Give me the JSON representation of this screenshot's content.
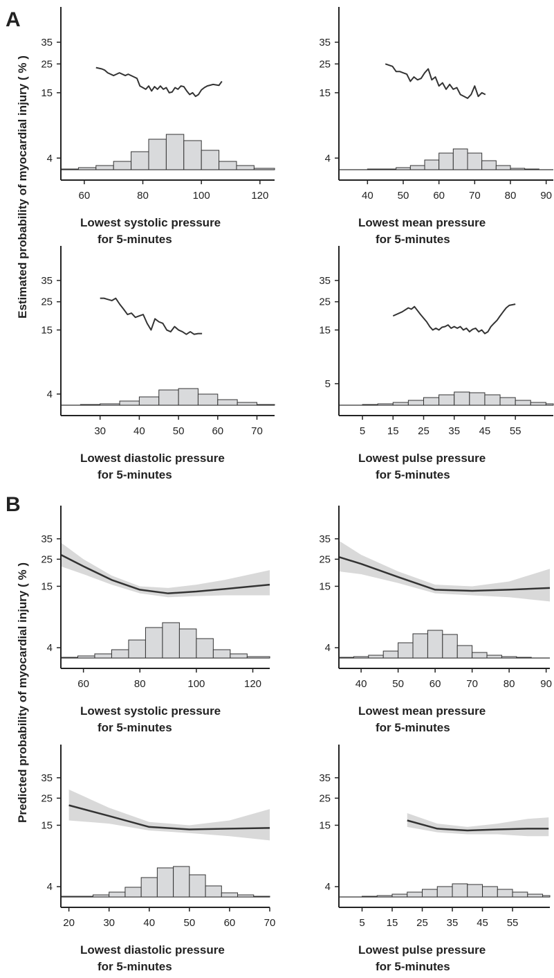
{
  "sections": [
    {
      "label": "A",
      "ylabel": "Estimated probability of myocardial injury ( % )"
    },
    {
      "label": "B",
      "ylabel": "Predicted probability of myocardial injury ( % )"
    }
  ],
  "chart_data": [
    {
      "type": "line",
      "xlabel": [
        "Lowest systolic pressure",
        "for 5-minutes"
      ],
      "yscale": "logit",
      "ylim": [
        2.5,
        54
      ],
      "yticks": [
        4,
        15,
        25,
        35
      ],
      "xlim": [
        52,
        125
      ],
      "xticks": [
        60,
        80,
        100,
        120
      ],
      "color": "#333333",
      "x": [
        64,
        66,
        67,
        68,
        70,
        71,
        72,
        74,
        75,
        77,
        78,
        79,
        80,
        81,
        82,
        83,
        84,
        85,
        86,
        87,
        88,
        89,
        90,
        91,
        92,
        93,
        94,
        95,
        96,
        97,
        98,
        99,
        100,
        101,
        102,
        104,
        106,
        107
      ],
      "values": [
        23.5,
        23,
        22.5,
        21.5,
        20.5,
        21,
        21.5,
        20.5,
        21,
        20,
        19.5,
        17,
        16.5,
        16,
        17,
        15.5,
        16.8,
        16,
        17,
        16,
        16.5,
        15,
        15.2,
        16.5,
        16,
        17,
        16.8,
        15.5,
        14.5,
        15,
        14,
        14.5,
        15.8,
        16.5,
        17,
        17.5,
        17.2,
        18.5
      ],
      "histogram": {
        "bins": [
          52,
          58,
          64,
          70,
          76,
          82,
          88,
          94,
          100,
          106,
          112,
          118,
          125
        ],
        "counts": [
          1,
          3,
          6,
          12,
          26,
          44,
          51,
          42,
          28,
          12,
          6,
          2
        ]
      }
    },
    {
      "type": "line",
      "xlabel": [
        "Lowest mean pressure",
        "for 5-minutes"
      ],
      "yscale": "logit",
      "ylim": [
        2.5,
        54
      ],
      "yticks": [
        4,
        15,
        25,
        35
      ],
      "xlim": [
        32,
        92
      ],
      "xticks": [
        40,
        50,
        60,
        70,
        80,
        90
      ],
      "color": "#333333",
      "x": [
        45,
        46,
        47,
        48,
        49,
        50,
        51,
        52,
        53,
        54,
        55,
        56,
        57,
        58,
        59,
        60,
        61,
        62,
        63,
        64,
        65,
        66,
        67,
        68,
        69,
        70,
        71,
        72,
        73
      ],
      "values": [
        25,
        24.5,
        24,
        22,
        22,
        21.5,
        21,
        18.5,
        20,
        19,
        19.5,
        21.5,
        23,
        19,
        20,
        17,
        18,
        16,
        17.5,
        16,
        16.5,
        14.5,
        14,
        13.5,
        14.5,
        17,
        14,
        15,
        14.5
      ],
      "histogram": {
        "bins": [
          32,
          36,
          40,
          44,
          48,
          52,
          56,
          60,
          64,
          68,
          72,
          76,
          80,
          84,
          88,
          92
        ],
        "counts": [
          0,
          0,
          1,
          1,
          3,
          6,
          14,
          24,
          30,
          24,
          13,
          6,
          2,
          1,
          0
        ]
      }
    },
    {
      "type": "line",
      "xlabel": [
        "Lowest diastolic pressure",
        "for 5-minutes"
      ],
      "yscale": "logit",
      "ylim": [
        2.5,
        54
      ],
      "yticks": [
        4,
        15,
        25,
        35
      ],
      "xlim": [
        20,
        74.5
      ],
      "xticks": [
        30,
        40,
        50,
        60,
        70
      ],
      "color": "#333333",
      "x": [
        30,
        31,
        32,
        33,
        34,
        35,
        36,
        37,
        38,
        39,
        40,
        41,
        42,
        43,
        44,
        45,
        46,
        47,
        48,
        49,
        50,
        51,
        52,
        53,
        54,
        55,
        56
      ],
      "values": [
        26.5,
        26.5,
        26,
        25.5,
        26.5,
        24,
        22,
        20,
        20.5,
        19,
        19.5,
        20,
        17,
        15,
        18.5,
        17.5,
        17,
        15,
        14.5,
        16,
        15,
        14.5,
        13.8,
        14.5,
        13.8,
        14,
        14
      ],
      "histogram": {
        "bins": [
          20,
          25,
          30,
          35,
          40,
          45,
          50,
          55,
          60,
          65,
          70,
          74.5
        ],
        "counts": [
          0,
          1,
          2,
          6,
          12,
          22,
          24,
          16,
          8,
          4,
          1
        ]
      }
    },
    {
      "type": "line",
      "xlabel": [
        "Lowest pulse pressure",
        "for 5-minutes"
      ],
      "yscale": "logit",
      "ylim": [
        2.5,
        54
      ],
      "yticks": [
        5,
        15,
        25,
        35
      ],
      "xlim": [
        -2.7,
        67.4
      ],
      "xticks": [
        5,
        15,
        25,
        35,
        45,
        55
      ],
      "color": "#333333",
      "x": [
        15,
        18,
        20,
        21,
        22,
        24,
        26,
        27,
        28,
        29,
        30,
        31,
        32,
        33,
        34,
        35,
        36,
        37,
        38,
        39,
        40,
        41,
        42,
        43,
        44,
        45,
        46,
        47,
        48,
        49,
        50,
        51,
        52,
        53,
        55
      ],
      "values": [
        19.5,
        21,
        22.5,
        22,
        23,
        20,
        17.5,
        16,
        15,
        15.5,
        15,
        15.8,
        16,
        16.5,
        15.5,
        16,
        15.5,
        16,
        15,
        15.5,
        14.5,
        15.2,
        15.5,
        14.5,
        15,
        14,
        14.5,
        16,
        17,
        18,
        19.5,
        21,
        22.5,
        23.5,
        24
      ],
      "histogram": {
        "bins": [
          5,
          10,
          15,
          20,
          25,
          30,
          35,
          40,
          45,
          50,
          55,
          60,
          65,
          67.4
        ],
        "counts": [
          1,
          2,
          4,
          7,
          11,
          15,
          19,
          18,
          15,
          11,
          7,
          4,
          2
        ]
      }
    },
    {
      "type": "band-line",
      "xlabel": [
        "Lowest systolic pressure",
        "for 5-minutes"
      ],
      "yscale": "logit",
      "ylim": [
        2.5,
        54
      ],
      "yticks": [
        4,
        15,
        25,
        35
      ],
      "xlim": [
        52,
        126
      ],
      "xticks": [
        60,
        80,
        100,
        120
      ],
      "color": "#333333",
      "band_color": "#d9d9d9",
      "x": [
        52,
        60,
        70,
        80,
        90,
        100,
        110,
        126
      ],
      "values": [
        27,
        22,
        17,
        14,
        13,
        13.5,
        14.2,
        15.5
      ],
      "ci_lower": [
        22,
        19,
        15.5,
        13,
        12,
        12.3,
        12.5,
        12.5
      ],
      "ci_upper": [
        33,
        25,
        18.5,
        15,
        14.5,
        15.5,
        17,
        20.5
      ],
      "histogram": {
        "bins": [
          52,
          58,
          64,
          70,
          76,
          82,
          88,
          94,
          100,
          106,
          112,
          118,
          126
        ],
        "counts": [
          1,
          3,
          6,
          12,
          26,
          44,
          51,
          42,
          28,
          12,
          6,
          2
        ]
      }
    },
    {
      "type": "band-line",
      "xlabel": [
        "Lowest mean pressure",
        "for 5-minutes"
      ],
      "yscale": "logit",
      "ylim": [
        2.5,
        54
      ],
      "yticks": [
        4,
        15,
        25,
        35
      ],
      "xlim": [
        34,
        91
      ],
      "xticks": [
        40,
        50,
        60,
        70,
        80,
        90
      ],
      "color": "#333333",
      "band_color": "#d9d9d9",
      "x": [
        34,
        40,
        50,
        60,
        70,
        80,
        91
      ],
      "values": [
        26,
        23,
        18,
        14,
        13.7,
        14,
        14.5
      ],
      "ci_lower": [
        20,
        19,
        16,
        13,
        12.5,
        12,
        11
      ],
      "ci_upper": [
        34,
        27,
        20,
        15.5,
        15,
        16.5,
        21
      ],
      "histogram": {
        "bins": [
          34,
          38,
          42,
          46,
          50,
          54,
          58,
          62,
          66,
          70,
          74,
          78,
          82,
          86,
          91
        ],
        "counts": [
          1,
          2,
          4,
          10,
          22,
          35,
          40,
          34,
          18,
          8,
          4,
          2,
          1,
          0
        ]
      }
    },
    {
      "type": "band-line",
      "xlabel": [
        "Lowest diastolic pressure",
        "for 5-minutes"
      ],
      "yscale": "logit",
      "ylim": [
        2.5,
        54
      ],
      "yticks": [
        4,
        15,
        25,
        35
      ],
      "xlim": [
        18,
        70
      ],
      "xticks": [
        20,
        30,
        40,
        50,
        60,
        70
      ],
      "color": "#333333",
      "band_color": "#d9d9d9",
      "x": [
        20,
        30,
        40,
        50,
        60,
        70
      ],
      "values": [
        22,
        18,
        14.5,
        13.8,
        14,
        14.2
      ],
      "ci_lower": [
        16.5,
        15.5,
        13.5,
        12.8,
        12,
        11
      ],
      "ci_upper": [
        29,
        21,
        16,
        15,
        16.5,
        20.5
      ],
      "histogram": {
        "bins": [
          18,
          22,
          26,
          30,
          34,
          38,
          42,
          46,
          50,
          54,
          58,
          62,
          66,
          70
        ],
        "counts": [
          1,
          1,
          3,
          7,
          14,
          28,
          42,
          44,
          32,
          16,
          6,
          3,
          1
        ]
      }
    },
    {
      "type": "band-line",
      "xlabel": [
        "Lowest pulse pressure",
        "for 5-minutes"
      ],
      "yscale": "logit",
      "ylim": [
        2.5,
        54
      ],
      "yticks": [
        4,
        15,
        25,
        35
      ],
      "xlim": [
        -2.7,
        67.4
      ],
      "xticks": [
        5,
        15,
        25,
        35,
        45,
        55
      ],
      "color": "#333333",
      "band_color": "#d9d9d9",
      "x": [
        20,
        30,
        40,
        50,
        60,
        67
      ],
      "values": [
        16.5,
        14,
        13.5,
        13.8,
        14,
        14
      ],
      "ci_lower": [
        14.5,
        13,
        12.5,
        12.5,
        12,
        12
      ],
      "ci_upper": [
        19,
        15.5,
        14.5,
        15.5,
        17,
        17.5
      ],
      "histogram": {
        "bins": [
          5,
          10,
          15,
          20,
          25,
          30,
          35,
          40,
          45,
          50,
          55,
          60,
          65,
          67.4
        ],
        "counts": [
          1,
          2,
          4,
          7,
          11,
          15,
          19,
          18,
          15,
          11,
          7,
          4,
          2
        ]
      }
    }
  ]
}
